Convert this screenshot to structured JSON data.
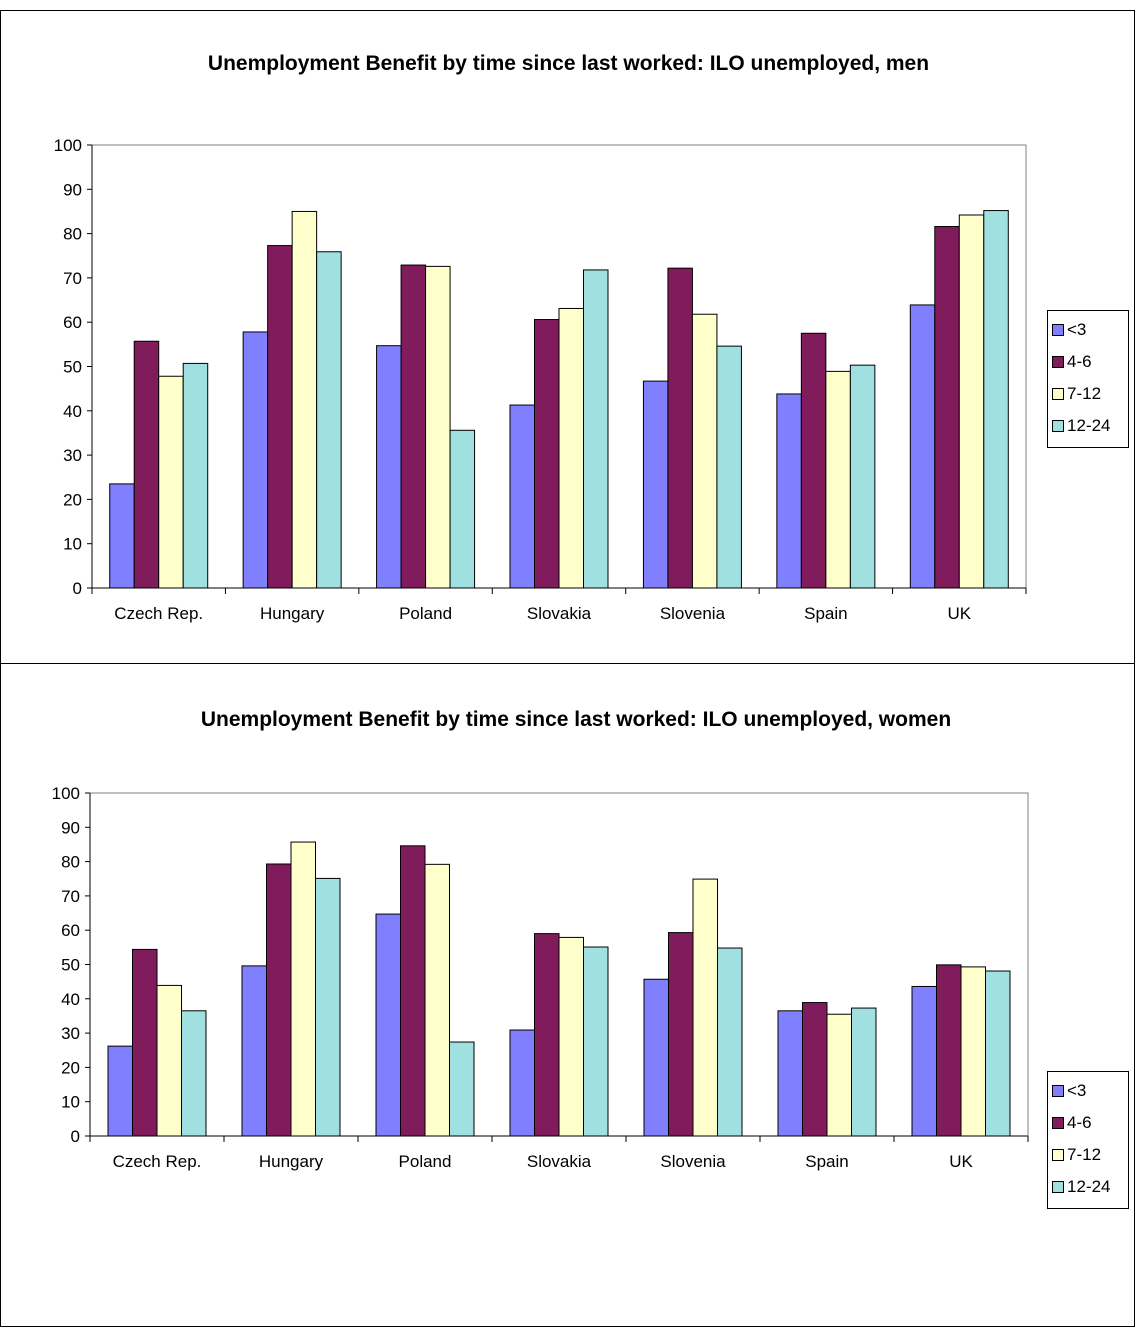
{
  "chart_data": [
    {
      "type": "bar",
      "title": "Unemployment Benefit by time since last worked: ILO unemployed, men",
      "categories": [
        "Czech Rep.",
        "Hungary",
        "Poland",
        "Slovakia",
        "Slovenia",
        "Spain",
        "UK"
      ],
      "series": [
        {
          "name": "<3",
          "color": "#8080ff",
          "values": [
            23.5,
            57.8,
            54.7,
            41.3,
            46.7,
            43.8,
            63.9
          ]
        },
        {
          "name": "4-6",
          "color": "#801c5c",
          "values": [
            55.7,
            77.3,
            72.9,
            60.6,
            72.2,
            57.5,
            81.6
          ]
        },
        {
          "name": "7-12",
          "color": "#ffffcc",
          "values": [
            47.8,
            85.0,
            72.6,
            63.1,
            61.8,
            48.9,
            84.2
          ]
        },
        {
          "name": "12-24",
          "color": "#a0e0e0",
          "values": [
            50.7,
            75.9,
            35.6,
            71.8,
            54.6,
            50.3,
            85.2
          ]
        }
      ],
      "ylim": [
        0,
        100
      ],
      "yticks": [
        0,
        10,
        20,
        30,
        40,
        50,
        60,
        70,
        80,
        90,
        100
      ],
      "grid": false,
      "legend": "right",
      "xlabel": "",
      "ylabel": ""
    },
    {
      "type": "bar",
      "title": "Unemployment Benefit by time since last worked: ILO unemployed, women",
      "categories": [
        "Czech Rep.",
        "Hungary",
        "Poland",
        "Slovakia",
        "Slovenia",
        "Spain",
        "UK"
      ],
      "series": [
        {
          "name": "<3",
          "color": "#8080ff",
          "values": [
            26.2,
            49.6,
            64.7,
            30.9,
            45.7,
            36.5,
            43.6
          ]
        },
        {
          "name": "4-6",
          "color": "#801c5c",
          "values": [
            54.4,
            79.3,
            84.6,
            59.0,
            59.3,
            38.9,
            49.9
          ]
        },
        {
          "name": "7-12",
          "color": "#ffffcc",
          "values": [
            43.9,
            85.7,
            79.2,
            57.9,
            74.9,
            35.5,
            49.3
          ]
        },
        {
          "name": "12-24",
          "color": "#a0e0e0",
          "values": [
            36.5,
            75.1,
            27.4,
            55.1,
            54.8,
            37.3,
            48.1
          ]
        }
      ],
      "ylim": [
        0,
        100
      ],
      "yticks": [
        0,
        10,
        20,
        30,
        40,
        50,
        60,
        70,
        80,
        90,
        100
      ],
      "grid": false,
      "legend": "right",
      "xlabel": "",
      "ylabel": ""
    }
  ]
}
